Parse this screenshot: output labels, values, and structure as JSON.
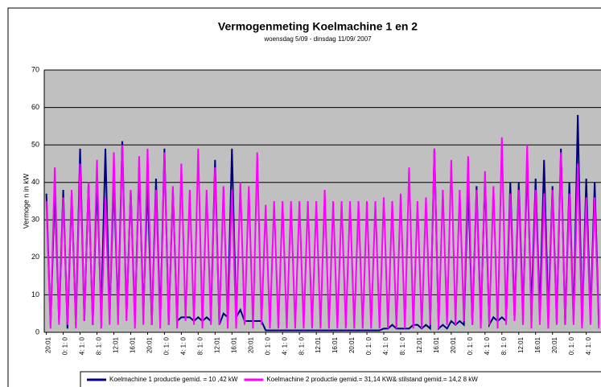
{
  "chart_data": {
    "type": "line",
    "title": "Vermogenmeting Koelmachine 1 en 2",
    "subtitle": "woensdag 5/09 - dinsdag 11/09/ 2007",
    "y_label": "Vermoge n in kW",
    "ylim": [
      0,
      70
    ],
    "yticks": [
      0,
      10,
      20,
      30,
      40,
      50,
      60,
      70
    ],
    "grid": true,
    "categories": [
      "20:01",
      null,
      null,
      null,
      "0: 1: 0",
      null,
      null,
      null,
      "4: 1: 0",
      null,
      null,
      null,
      "8: 1: 0",
      null,
      null,
      null,
      "12:01",
      null,
      null,
      null,
      "16:01",
      null,
      null,
      null,
      "20:01",
      null,
      null,
      null,
      "0: 1: 0",
      null,
      null,
      null,
      "4: 1: 0",
      null,
      null,
      null,
      "8: 1: 0",
      null,
      null,
      null,
      "12:01",
      null,
      null,
      null,
      "16:01",
      null,
      null,
      null,
      "20:01",
      null,
      null,
      null,
      "0: 1: 0",
      null,
      null,
      null,
      "4: 1: 0",
      null,
      null,
      null,
      "8: 1: 0",
      null,
      null,
      null,
      "12:01",
      null,
      null,
      null,
      "16:01",
      null,
      null,
      null,
      "20:01",
      null,
      null,
      null,
      "0: 1: 0",
      null,
      null,
      null,
      "4: 1: 0",
      null,
      null,
      null,
      "8: 1: 0",
      null,
      null,
      null,
      "12:01",
      null,
      null,
      null,
      "16:01",
      null,
      null,
      null,
      "20:01",
      null,
      null,
      null,
      "0: 1: 0",
      null,
      null,
      null,
      "4: 1: 0",
      null,
      null,
      null,
      "8: 1: 0",
      null,
      null,
      null,
      "12:01",
      null,
      null,
      null,
      "16:01",
      null,
      null,
      null,
      "20:01",
      null,
      null,
      null,
      "0: 1: 0",
      null,
      null,
      null,
      "4: 1: 0",
      null,
      null,
      null
    ],
    "series": [
      {
        "name": "Koelmachine 1  productie gemid. = 10 ,42 kW",
        "color": "#000080",
        "values": [
          37,
          2,
          38,
          3,
          38,
          1,
          37,
          2,
          49,
          3,
          40,
          2,
          40,
          5,
          49,
          4,
          41,
          5,
          51,
          4,
          38,
          3,
          44,
          5,
          40,
          2,
          41,
          3,
          49,
          2,
          38,
          3,
          4,
          4,
          4,
          3,
          4,
          3,
          4,
          3,
          46,
          2,
          5,
          4,
          49,
          4,
          6,
          3,
          3,
          3,
          3,
          3,
          0.5,
          0.5,
          0.5,
          0.5,
          0.5,
          0.5,
          0.5,
          0.5,
          0.5,
          0.5,
          0.5,
          0.5,
          0.5,
          0.5,
          0.5,
          0.5,
          0.5,
          0.5,
          0.5,
          0.5,
          0.5,
          0.5,
          0.5,
          0.5,
          0.5,
          0.5,
          0.5,
          0.5,
          1,
          1,
          2,
          1,
          1,
          1,
          1,
          2,
          2,
          1,
          2,
          1,
          49,
          1,
          2,
          1,
          3,
          2,
          3,
          2,
          40,
          2,
          39,
          3,
          41,
          2,
          4,
          3,
          4,
          3,
          40,
          4,
          40,
          5,
          45,
          6,
          41,
          5,
          46,
          4,
          39,
          3,
          49,
          2,
          40,
          3,
          58,
          2,
          41,
          4,
          40,
          2
        ]
      },
      {
        "name": "Koelmachine 2 productie gemid.= 31,14  KW& stilstand gemid.= 14,2 8 kW",
        "color": "#ff00ff",
        "values": [
          35,
          1,
          44,
          2,
          36,
          2,
          38,
          1,
          45,
          3,
          40,
          2,
          46,
          1,
          36,
          2,
          48,
          2,
          50,
          3,
          38,
          1,
          47,
          2,
          49,
          2,
          38,
          1,
          48,
          2,
          39,
          1,
          45,
          3,
          38,
          2,
          49,
          1,
          38,
          2,
          44,
          2,
          39,
          1,
          38,
          1,
          40,
          2,
          39,
          1,
          48,
          2,
          34,
          1,
          35,
          1,
          35,
          1,
          35,
          1,
          35,
          1,
          35,
          1,
          35,
          1,
          38,
          1,
          35,
          1,
          35,
          1,
          35,
          1,
          35,
          1,
          35,
          1,
          35,
          1,
          36,
          1,
          35,
          1,
          37,
          1,
          44,
          1,
          35,
          1,
          36,
          2,
          49,
          1,
          38,
          2,
          46,
          2,
          38,
          3,
          47,
          2,
          38,
          1,
          43,
          2,
          39,
          1,
          52,
          2,
          37,
          3,
          38,
          2,
          50,
          1,
          38,
          2,
          37,
          1,
          38,
          2,
          48,
          2,
          37,
          2,
          45,
          1,
          36,
          2,
          36,
          1
        ]
      }
    ]
  }
}
